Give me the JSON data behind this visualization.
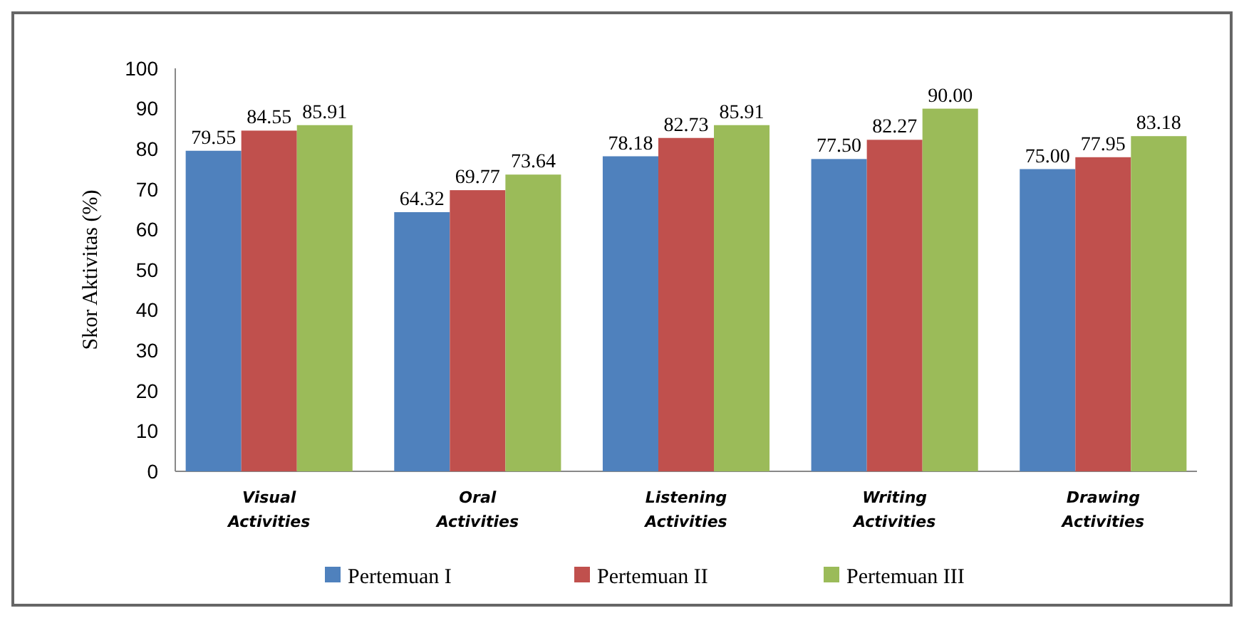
{
  "chart_data": {
    "type": "bar",
    "ylabel": "Skor Aktivitas (%)",
    "categories": [
      "Visual Activities",
      "Oral Activities",
      "Listening Activities",
      "Writing Activities",
      "Drawing Activities"
    ],
    "series": [
      {
        "name": "Pertemuan I",
        "color": "#4f81bd",
        "values": [
          79.55,
          64.32,
          78.18,
          77.5,
          75.0
        ],
        "value_labels": [
          "79.55",
          "64.32",
          "78.18",
          "77.50",
          "75.00"
        ]
      },
      {
        "name": "Pertemuan II",
        "color": "#c0504d",
        "values": [
          84.55,
          69.77,
          82.73,
          82.27,
          77.95
        ],
        "value_labels": [
          "84.55",
          "69.77",
          "82.73",
          "82.27",
          "77.95"
        ]
      },
      {
        "name": "Pertemuan III",
        "color": "#9bbb59",
        "values": [
          85.91,
          73.64,
          85.91,
          90.0,
          83.18
        ],
        "value_labels": [
          "85.91",
          "73.64",
          "85.91",
          "90.00",
          "83.18"
        ]
      }
    ],
    "ylim": [
      0,
      100
    ],
    "yticks": [
      0,
      10,
      20,
      30,
      40,
      50,
      60,
      70,
      80,
      90,
      100
    ],
    "legend": "bottom",
    "grid": false
  }
}
